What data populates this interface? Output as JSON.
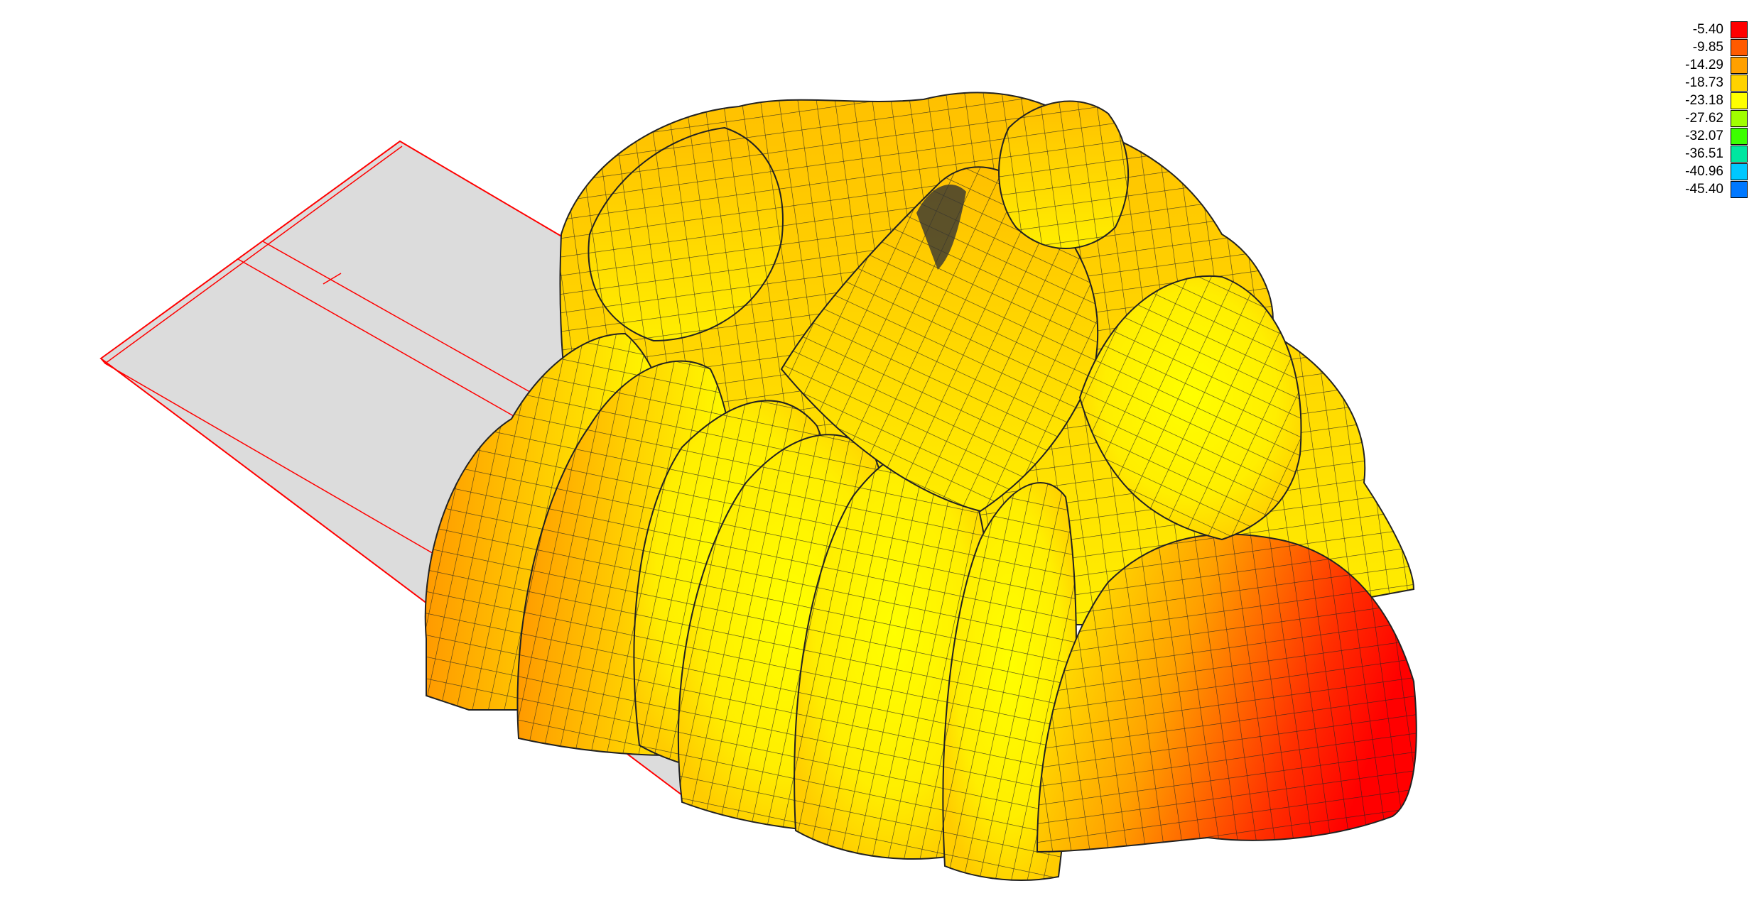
{
  "legend": {
    "entries": [
      {
        "label": "-5.40",
        "color": "#ff0000"
      },
      {
        "label": "-9.85",
        "color": "#ff5a00"
      },
      {
        "label": "-14.29",
        "color": "#ffa000"
      },
      {
        "label": "-18.73",
        "color": "#ffd200"
      },
      {
        "label": "-23.18",
        "color": "#ffff00"
      },
      {
        "label": "-27.62",
        "color": "#a0ff00"
      },
      {
        "label": "-32.07",
        "color": "#3cff00"
      },
      {
        "label": "-36.51",
        "color": "#00e6a0"
      },
      {
        "label": "-40.96",
        "color": "#00c8ff"
      },
      {
        "label": "-45.40",
        "color": "#0078ff"
      }
    ]
  },
  "colors": {
    "plane_fill": "#dcdcdc",
    "plane_edge": "#ff0000",
    "surface_high": "#ff0000",
    "surface_mid": "#ffa000",
    "surface_low": "#ffff00",
    "mesh_line": "#1a1a1a"
  },
  "icons": {
    "model": "deformed-mesh-shape"
  }
}
